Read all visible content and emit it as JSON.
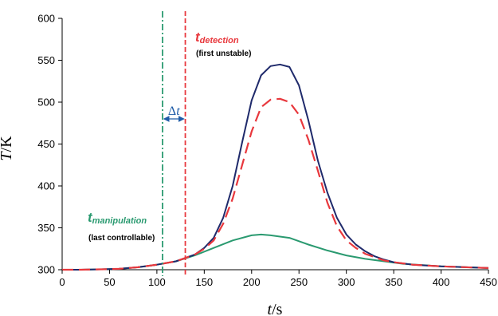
{
  "chart_data": {
    "type": "line",
    "title": "",
    "xlabel": {
      "var": "t",
      "unit": "/s"
    },
    "ylabel": {
      "var": "T",
      "unit": "/K"
    },
    "xlim": [
      0,
      450
    ],
    "ylim": [
      300,
      600
    ],
    "x_ticks": [
      0,
      50,
      100,
      150,
      200,
      250,
      300,
      350,
      400,
      450
    ],
    "y_ticks": [
      300,
      350,
      400,
      450,
      500,
      550,
      600
    ],
    "grid": false,
    "legend": "none",
    "series": [
      {
        "color": "#1f2a6b",
        "style": "solid",
        "points": [
          [
            0,
            300
          ],
          [
            20,
            300
          ],
          [
            40,
            300.5
          ],
          [
            60,
            301
          ],
          [
            80,
            303
          ],
          [
            100,
            306
          ],
          [
            120,
            310
          ],
          [
            140,
            318
          ],
          [
            150,
            326
          ],
          [
            160,
            338
          ],
          [
            170,
            362
          ],
          [
            180,
            400
          ],
          [
            190,
            452
          ],
          [
            200,
            502
          ],
          [
            210,
            532
          ],
          [
            220,
            543
          ],
          [
            230,
            545
          ],
          [
            240,
            542
          ],
          [
            250,
            520
          ],
          [
            260,
            478
          ],
          [
            270,
            430
          ],
          [
            280,
            392
          ],
          [
            290,
            362
          ],
          [
            300,
            342
          ],
          [
            310,
            330
          ],
          [
            320,
            322
          ],
          [
            330,
            316
          ],
          [
            340,
            312
          ],
          [
            350,
            309
          ],
          [
            370,
            306
          ],
          [
            400,
            304
          ],
          [
            450,
            302
          ]
        ]
      },
      {
        "color": "#e8383d",
        "style": "dashed",
        "points": [
          [
            0,
            300
          ],
          [
            20,
            300
          ],
          [
            40,
            300.5
          ],
          [
            60,
            301
          ],
          [
            80,
            303
          ],
          [
            100,
            306
          ],
          [
            120,
            310
          ],
          [
            140,
            318
          ],
          [
            150,
            325
          ],
          [
            160,
            335
          ],
          [
            170,
            355
          ],
          [
            180,
            385
          ],
          [
            190,
            425
          ],
          [
            200,
            465
          ],
          [
            210,
            494
          ],
          [
            220,
            503
          ],
          [
            230,
            504
          ],
          [
            240,
            500
          ],
          [
            250,
            485
          ],
          [
            260,
            455
          ],
          [
            270,
            418
          ],
          [
            280,
            380
          ],
          [
            290,
            352
          ],
          [
            300,
            335
          ],
          [
            310,
            326
          ],
          [
            320,
            319
          ],
          [
            330,
            315
          ],
          [
            340,
            311
          ],
          [
            350,
            309
          ],
          [
            370,
            306
          ],
          [
            400,
            304
          ],
          [
            450,
            302
          ]
        ]
      },
      {
        "color": "#2a9a70",
        "style": "solid",
        "points": [
          [
            0,
            300
          ],
          [
            20,
            300
          ],
          [
            40,
            300.5
          ],
          [
            60,
            301
          ],
          [
            80,
            303
          ],
          [
            100,
            306
          ],
          [
            120,
            310
          ],
          [
            140,
            317
          ],
          [
            160,
            326
          ],
          [
            180,
            335
          ],
          [
            200,
            341
          ],
          [
            210,
            342
          ],
          [
            220,
            341
          ],
          [
            240,
            338
          ],
          [
            260,
            330
          ],
          [
            280,
            323
          ],
          [
            300,
            317
          ],
          [
            320,
            313
          ],
          [
            340,
            310
          ],
          [
            360,
            307
          ],
          [
            400,
            304
          ],
          [
            450,
            302
          ]
        ]
      }
    ],
    "vlines": [
      {
        "x": 106,
        "color": "#2a9a70",
        "style": "dash-dot"
      },
      {
        "x": 130,
        "color": "#e8383d",
        "style": "dashed"
      }
    ],
    "annotations": {
      "detection": {
        "main": "t",
        "sub": "detection",
        "note": "(first unstable)",
        "color": "#e8383d"
      },
      "manipulation": {
        "main": "t",
        "sub": "manipulation",
        "note": "(last controllable)",
        "color": "#2a9a70"
      },
      "delta": {
        "symbol": "Δ",
        "var": "t",
        "x_from": 106,
        "x_to": 130,
        "y": 480,
        "color": "#1f5ca8"
      }
    }
  }
}
